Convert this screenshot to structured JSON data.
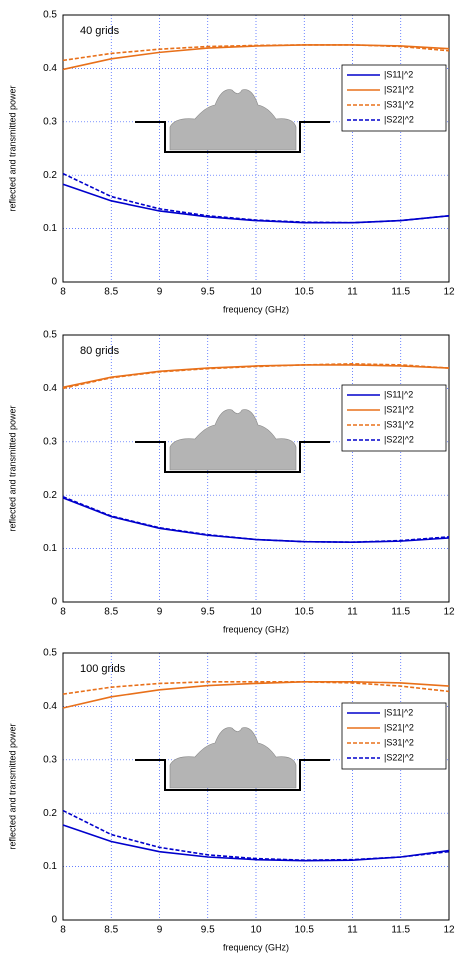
{
  "chart_data": [
    {
      "type": "line",
      "annotation": "40 grids",
      "xlabel": "frequency (GHz)",
      "ylabel": "reflected and transmitted power",
      "x": [
        8,
        8.5,
        9,
        9.5,
        10,
        10.5,
        11,
        11.5,
        12
      ],
      "xlim": [
        8,
        12
      ],
      "ylim": [
        0,
        0.5
      ],
      "xticks": [
        8,
        8.5,
        9,
        9.5,
        10,
        10.5,
        11,
        11.5,
        12
      ],
      "yticks": [
        0,
        0.1,
        0.2,
        0.3,
        0.4,
        0.5
      ],
      "grid": true,
      "legend": "right",
      "series": [
        {
          "name": "|S11|^2",
          "color": "#0000cc",
          "dash": false,
          "values": [
            0.183,
            0.152,
            0.133,
            0.122,
            0.115,
            0.111,
            0.111,
            0.115,
            0.124
          ]
        },
        {
          "name": "|S21|^2",
          "color": "#e8701a",
          "dash": false,
          "values": [
            0.398,
            0.418,
            0.43,
            0.438,
            0.442,
            0.444,
            0.444,
            0.442,
            0.437
          ]
        },
        {
          "name": "|S31|^2",
          "color": "#e8701a",
          "dash": true,
          "values": [
            0.415,
            0.428,
            0.436,
            0.441,
            0.443,
            0.444,
            0.444,
            0.441,
            0.433
          ]
        },
        {
          "name": "|S22|^2",
          "color": "#0000cc",
          "dash": true,
          "values": [
            0.203,
            0.16,
            0.137,
            0.124,
            0.116,
            0.112,
            0.111,
            0.115,
            0.124
          ]
        }
      ]
    },
    {
      "type": "line",
      "annotation": "80 grids",
      "xlabel": "frequency (GHz)",
      "ylabel": "reflected and transmitted power",
      "x": [
        8,
        8.5,
        9,
        9.5,
        10,
        10.5,
        11,
        11.5,
        12
      ],
      "xlim": [
        8,
        12
      ],
      "ylim": [
        0,
        0.5
      ],
      "xticks": [
        8,
        8.5,
        9,
        9.5,
        10,
        10.5,
        11,
        11.5,
        12
      ],
      "yticks": [
        0,
        0.1,
        0.2,
        0.3,
        0.4,
        0.5
      ],
      "grid": true,
      "legend": "right",
      "series": [
        {
          "name": "|S11|^2",
          "color": "#0000cc",
          "dash": false,
          "values": [
            0.195,
            0.16,
            0.138,
            0.125,
            0.117,
            0.113,
            0.112,
            0.114,
            0.12
          ]
        },
        {
          "name": "|S21|^2",
          "color": "#e8701a",
          "dash": false,
          "values": [
            0.402,
            0.421,
            0.432,
            0.438,
            0.442,
            0.444,
            0.444,
            0.442,
            0.438
          ]
        },
        {
          "name": "|S31|^2",
          "color": "#e8701a",
          "dash": true,
          "values": [
            0.4,
            0.42,
            0.431,
            0.437,
            0.441,
            0.444,
            0.446,
            0.444,
            0.438
          ]
        },
        {
          "name": "|S22|^2",
          "color": "#0000cc",
          "dash": true,
          "values": [
            0.197,
            0.161,
            0.139,
            0.126,
            0.117,
            0.113,
            0.112,
            0.115,
            0.122
          ]
        }
      ]
    },
    {
      "type": "line",
      "annotation": "100 grids",
      "xlabel": "frequency (GHz)",
      "ylabel": "reflected and transmitted power",
      "x": [
        8,
        8.5,
        9,
        9.5,
        10,
        10.5,
        11,
        11.5,
        12
      ],
      "xlim": [
        8,
        12
      ],
      "ylim": [
        0,
        0.5
      ],
      "xticks": [
        8,
        8.5,
        9,
        9.5,
        10,
        10.5,
        11,
        11.5,
        12
      ],
      "yticks": [
        0,
        0.1,
        0.2,
        0.3,
        0.4,
        0.5
      ],
      "grid": true,
      "legend": "right",
      "series": [
        {
          "name": "|S11|^2",
          "color": "#0000cc",
          "dash": false,
          "values": [
            0.178,
            0.147,
            0.128,
            0.118,
            0.113,
            0.111,
            0.112,
            0.118,
            0.13
          ]
        },
        {
          "name": "|S21|^2",
          "color": "#e8701a",
          "dash": false,
          "values": [
            0.397,
            0.418,
            0.431,
            0.439,
            0.443,
            0.446,
            0.446,
            0.444,
            0.438
          ]
        },
        {
          "name": "|S31|^2",
          "color": "#e8701a",
          "dash": true,
          "values": [
            0.423,
            0.436,
            0.443,
            0.446,
            0.446,
            0.446,
            0.444,
            0.438,
            0.428
          ]
        },
        {
          "name": "|S22|^2",
          "color": "#0000cc",
          "dash": true,
          "values": [
            0.205,
            0.16,
            0.136,
            0.122,
            0.115,
            0.112,
            0.113,
            0.118,
            0.128
          ]
        }
      ]
    }
  ]
}
